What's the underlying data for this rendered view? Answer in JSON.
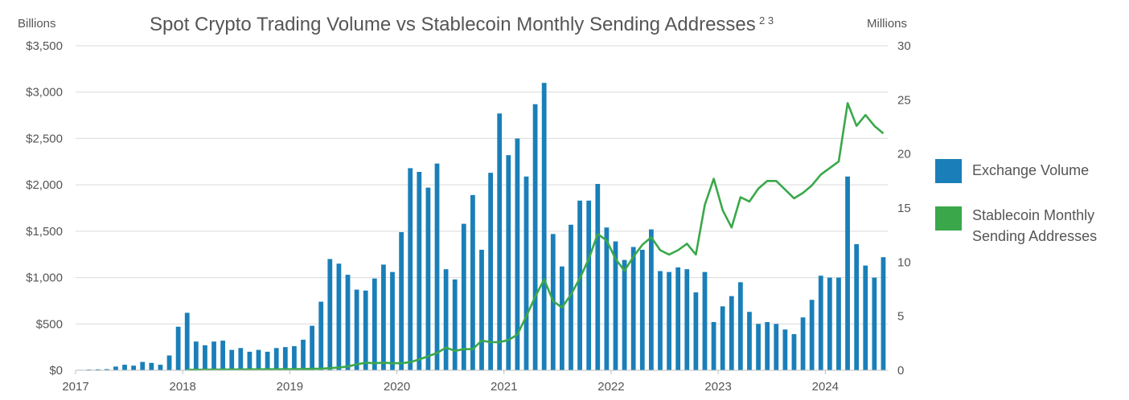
{
  "chart_data": {
    "type": "bar",
    "title": "Spot Crypto Trading Volume vs Stablecoin Monthly Sending Addresses",
    "title_superscript": "2 3",
    "y_left_unit": "Billions",
    "y_right_unit": "Millions",
    "y_left_ticks": [
      "$0",
      "$500",
      "$1,000",
      "$1,500",
      "$2,000",
      "$2,500",
      "$3,000",
      "$3,500"
    ],
    "y_right_ticks": [
      "0",
      "5",
      "10",
      "15",
      "20",
      "25",
      "30"
    ],
    "x_ticks": [
      "2017",
      "2018",
      "2019",
      "2020",
      "2021",
      "2022",
      "2023",
      "2024"
    ],
    "ylim_left": [
      0,
      3500
    ],
    "ylim_right": [
      0,
      30
    ],
    "x_start": "2017-01",
    "grid": true,
    "legend_position": "right",
    "series": [
      {
        "name": "Exchange Volume",
        "type": "bar",
        "axis": "left",
        "color": "#1a7fb8",
        "values": [
          5,
          8,
          10,
          12,
          40,
          60,
          50,
          90,
          80,
          60,
          160,
          470,
          620,
          310,
          270,
          310,
          320,
          220,
          240,
          200,
          220,
          200,
          240,
          250,
          260,
          330,
          480,
          740,
          1200,
          1150,
          1030,
          870,
          860,
          990,
          1140,
          1060,
          1490,
          2180,
          2140,
          1970,
          2230,
          1090,
          980,
          1580,
          1890,
          1300,
          2130,
          2770,
          2320,
          2500,
          2090,
          2870,
          3100,
          1470,
          1120,
          1570,
          1830,
          1830,
          2010,
          1540,
          1390,
          1190,
          1330,
          1300,
          1520,
          1070,
          1060,
          1110,
          1090,
          840,
          1060,
          520,
          690,
          800,
          950,
          630,
          500,
          520,
          500,
          440,
          390,
          570,
          760,
          1020,
          1000,
          1000,
          2090,
          1360,
          1130,
          1000,
          1220
        ]
      },
      {
        "name": "Stablecoin Monthly Sending Addresses",
        "type": "line",
        "axis": "right",
        "color": "#3aa84a",
        "start_index": 12,
        "values": [
          0.05,
          0.05,
          0.06,
          0.07,
          0.07,
          0.08,
          0.08,
          0.09,
          0.09,
          0.1,
          0.1,
          0.1,
          0.11,
          0.12,
          0.14,
          0.15,
          0.2,
          0.25,
          0.35,
          0.55,
          0.7,
          0.65,
          0.7,
          0.65,
          0.65,
          0.75,
          1.0,
          1.3,
          1.6,
          2.1,
          1.8,
          1.95,
          1.95,
          2.75,
          2.6,
          2.6,
          2.8,
          3.3,
          5.0,
          6.8,
          8.4,
          6.4,
          5.8,
          7.0,
          8.5,
          10.3,
          12.6,
          12.0,
          10.3,
          9.2,
          10.5,
          11.6,
          12.3,
          11.1,
          10.7,
          11.1,
          11.7,
          10.7,
          15.3,
          17.7,
          14.8,
          13.2,
          16.0,
          15.6,
          16.8,
          17.5,
          17.5,
          16.7,
          15.9,
          16.4,
          17.1,
          18.1,
          18.7,
          19.3,
          24.7,
          22.6,
          23.6,
          22.6,
          21.9
        ]
      }
    ]
  }
}
